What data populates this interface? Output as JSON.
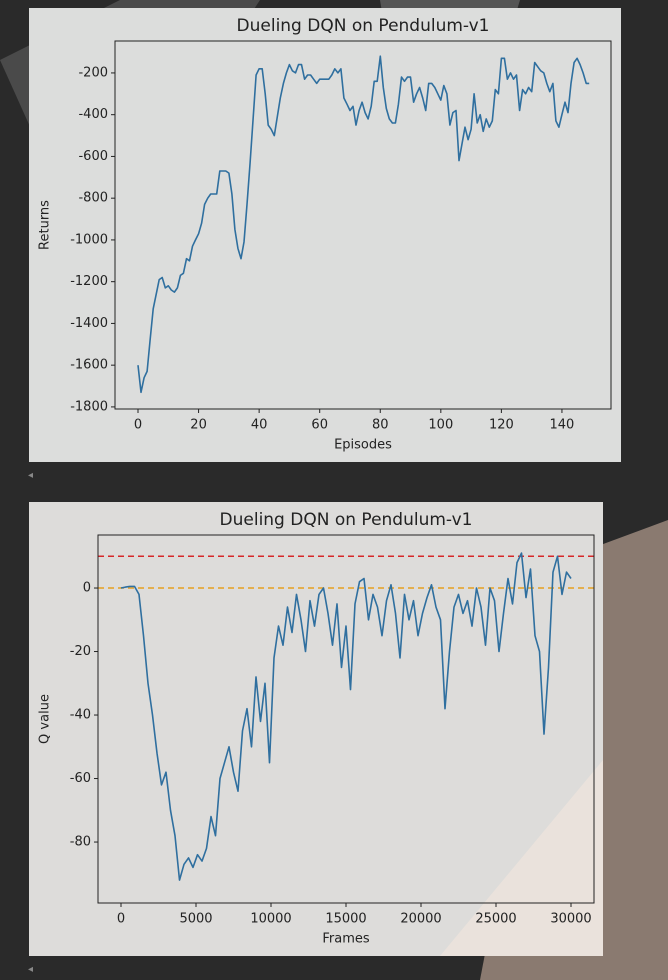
{
  "chart_data": [
    {
      "type": "line",
      "title": "Dueling DQN on Pendulum-v1",
      "xlabel": "Episodes",
      "ylabel": "Returns",
      "x": [
        0,
        1,
        2,
        3,
        4,
        5,
        6,
        7,
        8,
        9,
        10,
        11,
        12,
        13,
        14,
        15,
        16,
        17,
        18,
        19,
        20,
        21,
        22,
        23,
        24,
        25,
        26,
        27,
        28,
        29,
        30,
        31,
        32,
        33,
        34,
        35,
        36,
        37,
        38,
        39,
        40,
        41,
        42,
        43,
        44,
        45,
        46,
        47,
        48,
        49,
        50,
        51,
        52,
        53,
        54,
        55,
        56,
        57,
        58,
        59,
        60,
        61,
        62,
        63,
        64,
        65,
        66,
        67,
        68,
        69,
        70,
        71,
        72,
        73,
        74,
        75,
        76,
        77,
        78,
        79,
        80,
        81,
        82,
        83,
        84,
        85,
        86,
        87,
        88,
        89,
        90,
        91,
        92,
        93,
        94,
        95,
        96,
        97,
        98,
        99,
        100,
        101,
        102,
        103,
        104,
        105,
        106,
        107,
        108,
        109,
        110,
        111,
        112,
        113,
        114,
        115,
        116,
        117,
        118,
        119,
        120,
        121,
        122,
        123,
        124,
        125,
        126,
        127,
        128,
        129,
        130,
        131,
        132,
        133,
        134,
        135,
        136,
        137,
        138,
        139,
        140,
        141,
        142,
        143,
        144,
        145,
        146,
        147,
        148,
        149
      ],
      "series": [
        {
          "color": "#2f6f9f",
          "values": [
            -1600,
            -1730,
            -1660,
            -1630,
            -1480,
            -1330,
            -1260,
            -1190,
            -1180,
            -1230,
            -1220,
            -1240,
            -1250,
            -1230,
            -1170,
            -1160,
            -1090,
            -1100,
            -1030,
            -1000,
            -970,
            -920,
            -830,
            -800,
            -780,
            -780,
            -780,
            -670,
            -670,
            -670,
            -680,
            -780,
            -950,
            -1040,
            -1090,
            -1010,
            -830,
            -630,
            -420,
            -210,
            -180,
            -180,
            -300,
            -450,
            -470,
            -500,
            -410,
            -320,
            -250,
            -200,
            -160,
            -190,
            -200,
            -160,
            -160,
            -230,
            -210,
            -210,
            -230,
            -250,
            -230,
            -230,
            -230,
            -230,
            -210,
            -180,
            -200,
            -180,
            -320,
            -350,
            -380,
            -360,
            -450,
            -380,
            -340,
            -390,
            -420,
            -360,
            -240,
            -240,
            -120,
            -270,
            -370,
            -420,
            -440,
            -440,
            -350,
            -220,
            -240,
            -220,
            -220,
            -340,
            -300,
            -270,
            -320,
            -380,
            -250,
            -250,
            -270,
            -300,
            -330,
            -260,
            -300,
            -450,
            -390,
            -380,
            -620,
            -540,
            -460,
            -520,
            -470,
            -300,
            -440,
            -400,
            -480,
            -420,
            -460,
            -430,
            -280,
            -300,
            -130,
            -130,
            -230,
            -200,
            -230,
            -210,
            -380,
            -280,
            -300,
            -270,
            -290,
            -150,
            -170,
            -190,
            -200,
            -250,
            -290,
            -250,
            -430,
            -460,
            -400,
            -340,
            -390,
            -250,
            -150,
            -130,
            -160,
            -200,
            -250,
            -250
          ]
        }
      ],
      "xlim": [
        -7.6,
        156.2
      ],
      "ylim": [
        -1810,
        -47
      ],
      "xticks": [
        0,
        20,
        40,
        60,
        80,
        100,
        120,
        140
      ],
      "yticks": [
        -1800,
        -1600,
        -1400,
        -1200,
        -1000,
        -800,
        -600,
        -400,
        -200
      ]
    },
    {
      "type": "line",
      "title": "Dueling DQN on Pendulum-v1",
      "xlabel": "Frames",
      "ylabel": "Q value",
      "x": [
        0,
        300,
        600,
        900,
        1200,
        1500,
        1800,
        2100,
        2400,
        2700,
        3000,
        3300,
        3600,
        3900,
        4200,
        4500,
        4800,
        5100,
        5400,
        5700,
        6000,
        6300,
        6600,
        6900,
        7200,
        7500,
        7800,
        8100,
        8400,
        8700,
        9000,
        9300,
        9600,
        9900,
        10200,
        10500,
        10800,
        11100,
        11400,
        11700,
        12000,
        12300,
        12600,
        12900,
        13200,
        13500,
        13800,
        14100,
        14400,
        14700,
        15000,
        15300,
        15600,
        15900,
        16200,
        16500,
        16800,
        17100,
        17400,
        17700,
        18000,
        18300,
        18600,
        18900,
        19200,
        19500,
        19800,
        20100,
        20400,
        20700,
        21000,
        21300,
        21600,
        21900,
        22200,
        22500,
        22800,
        23100,
        23400,
        23700,
        24000,
        24300,
        24600,
        24900,
        25200,
        25500,
        25800,
        26100,
        26400,
        26700,
        27000,
        27300,
        27600,
        27900,
        28200,
        28500,
        28800,
        29100,
        29400,
        29700,
        30000
      ],
      "series": [
        {
          "color": "#2f6f9f",
          "values": [
            0,
            0.3,
            0.5,
            0.5,
            -2,
            -15,
            -30,
            -40,
            -52,
            -62,
            -58,
            -70,
            -78,
            -92,
            -87,
            -85,
            -88,
            -84,
            -86,
            -82,
            -72,
            -78,
            -60,
            -55,
            -50,
            -58,
            -64,
            -45,
            -38,
            -50,
            -28,
            -42,
            -30,
            -55,
            -22,
            -12,
            -18,
            -6,
            -14,
            -2,
            -10,
            -20,
            -4,
            -12,
            -2,
            0,
            -8,
            -18,
            -5,
            -25,
            -12,
            -32,
            -5,
            2,
            3,
            -10,
            -2,
            -6,
            -15,
            -4,
            1,
            -8,
            -22,
            -2,
            -10,
            -4,
            -15,
            -8,
            -3,
            1,
            -6,
            -10,
            -38,
            -20,
            -6,
            -2,
            -8,
            -4,
            -12,
            0,
            -6,
            -18,
            0,
            -4,
            -20,
            -8,
            3,
            -5,
            8,
            11,
            -3,
            6,
            -15,
            -20,
            -46,
            -25,
            5,
            10,
            -2,
            5,
            3
          ]
        }
      ],
      "hlines": [
        {
          "y": 10,
          "color": "#d62728"
        },
        {
          "y": 0,
          "color": "#e6a020"
        }
      ],
      "xlim": [
        -1533,
        31533
      ],
      "ylim": [
        -99.2,
        16.7
      ],
      "xticks": [
        0,
        5000,
        10000,
        15000,
        20000,
        25000,
        30000
      ],
      "yticks": [
        -80,
        -60,
        -40,
        -20,
        0
      ]
    }
  ]
}
